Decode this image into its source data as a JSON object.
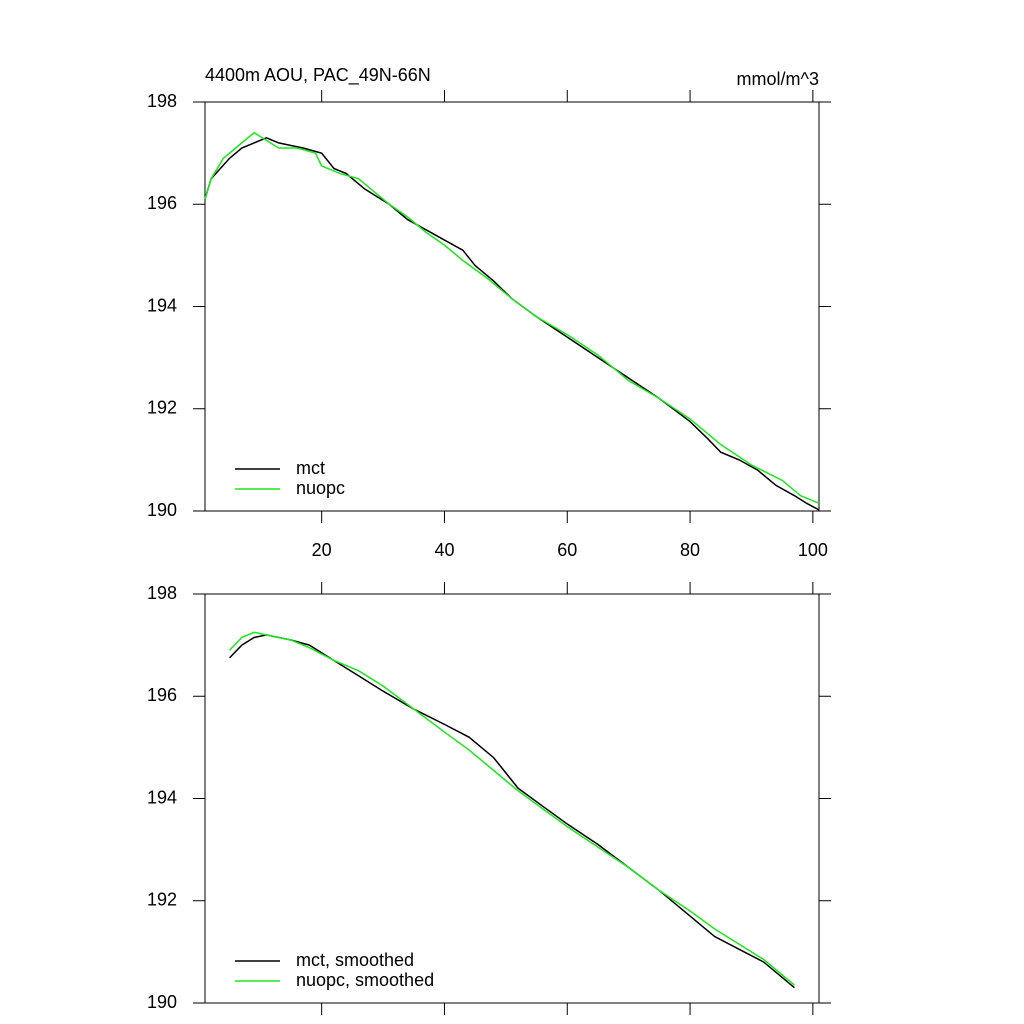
{
  "chart_data": [
    {
      "type": "line",
      "title": "4400m AOU, PAC_49N-66N",
      "units": "mmol/m^3",
      "xlim": [
        1,
        101
      ],
      "xticks": [
        20,
        40,
        60,
        80,
        100
      ],
      "ylim": [
        190,
        198
      ],
      "yticks": [
        190,
        192,
        194,
        196,
        198
      ],
      "legend": "lower left",
      "series": [
        {
          "name": "mct",
          "color": "#000000",
          "x": [
            1,
            2,
            5,
            7,
            9,
            11,
            13,
            15,
            17,
            20,
            22,
            24,
            27,
            29,
            31,
            34,
            37,
            40,
            43,
            45,
            48,
            51,
            55,
            60,
            65,
            70,
            75,
            80,
            83,
            85,
            88,
            91,
            94,
            97,
            99,
            101
          ],
          "values": [
            196.1,
            196.5,
            196.9,
            197.1,
            197.2,
            197.3,
            197.2,
            197.15,
            197.1,
            197.0,
            196.7,
            196.6,
            196.3,
            196.15,
            196.0,
            195.7,
            195.5,
            195.3,
            195.1,
            194.8,
            194.5,
            194.15,
            193.8,
            193.4,
            193.0,
            192.6,
            192.2,
            191.75,
            191.4,
            191.15,
            191.0,
            190.8,
            190.5,
            190.3,
            190.15,
            190.02
          ]
        },
        {
          "name": "nuopc",
          "color": "#1ee61e",
          "x": [
            1,
            2,
            4,
            6,
            9,
            11,
            13,
            16,
            19,
            20,
            23,
            26,
            28,
            31,
            34,
            37,
            40,
            43,
            47,
            51,
            55,
            60,
            65,
            70,
            75,
            80,
            85,
            90,
            95,
            98,
            101
          ],
          "values": [
            196.1,
            196.5,
            196.9,
            197.1,
            197.4,
            197.25,
            197.1,
            197.1,
            197.0,
            196.75,
            196.6,
            196.5,
            196.3,
            196.0,
            195.75,
            195.45,
            195.2,
            194.9,
            194.55,
            194.15,
            193.8,
            193.45,
            193.05,
            192.55,
            192.2,
            191.8,
            191.3,
            190.9,
            190.6,
            190.3,
            190.15
          ]
        }
      ]
    },
    {
      "type": "line",
      "xlim": [
        1,
        101
      ],
      "xticks": [
        20,
        40,
        60,
        80,
        100
      ],
      "ylim": [
        190,
        198
      ],
      "yticks": [
        190,
        192,
        194,
        196,
        198
      ],
      "legend": "lower left",
      "series": [
        {
          "name": "mct, smoothed",
          "color": "#000000",
          "x": [
            5,
            7,
            9,
            11,
            15,
            18,
            22,
            26,
            30,
            35,
            40,
            44,
            48,
            52,
            56,
            60,
            65,
            70,
            75,
            80,
            84,
            88,
            92,
            95,
            97
          ],
          "values": [
            196.75,
            197.0,
            197.15,
            197.2,
            197.1,
            197.0,
            196.7,
            196.4,
            196.1,
            195.75,
            195.45,
            195.2,
            194.8,
            194.2,
            193.85,
            193.5,
            193.1,
            192.65,
            192.2,
            191.7,
            191.3,
            191.05,
            190.8,
            190.5,
            190.3
          ]
        },
        {
          "name": "nuopc, smoothed",
          "color": "#1ee61e",
          "x": [
            5,
            7,
            9,
            11,
            15,
            18,
            22,
            26,
            30,
            35,
            40,
            44,
            48,
            52,
            56,
            60,
            65,
            70,
            75,
            80,
            84,
            88,
            92,
            95,
            97
          ],
          "values": [
            196.9,
            197.15,
            197.25,
            197.2,
            197.1,
            196.95,
            196.7,
            196.5,
            196.2,
            195.75,
            195.3,
            194.95,
            194.55,
            194.15,
            193.8,
            193.45,
            193.05,
            192.65,
            192.2,
            191.8,
            191.45,
            191.15,
            190.85,
            190.55,
            190.35
          ]
        }
      ]
    }
  ]
}
